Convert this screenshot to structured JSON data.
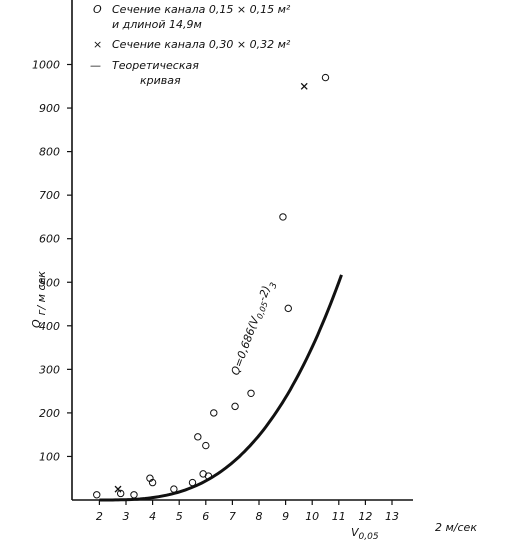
{
  "chart_data": {
    "type": "scatter",
    "title": "",
    "xlabel": "V",
    "xlabel_sub": "0,05",
    "xlabel_unit": "2 м/сек",
    "ylabel": "Q",
    "ylabel_sub": "г/ м сек",
    "xlim": [
      1,
      14
    ],
    "ylim": [
      0,
      1080
    ],
    "x_ticks": [
      2,
      3,
      4,
      5,
      6,
      7,
      8,
      9,
      10,
      11,
      12,
      13
    ],
    "y_ticks": [
      100,
      200,
      300,
      400,
      500,
      600,
      700,
      800,
      900,
      1000
    ],
    "x_tick_labels": [
      "2",
      "3",
      "4",
      "5",
      "6",
      "7",
      "8",
      "9",
      "10",
      "11",
      "12",
      "13"
    ],
    "y_tick_labels": [
      "100",
      "200",
      "300",
      "400",
      "500",
      "600",
      "700",
      "800",
      "900",
      "1000"
    ],
    "grid": false,
    "legend_position": "top-left",
    "series": [
      {
        "name": "Сечение канала 0,15 × 0,15 м² и длиной 14,9м",
        "legend_line1": "Сечение канала 0,15 × 0,15 м²",
        "legend_line2": "и длиной  14,9м",
        "marker": "circle",
        "marker_symbol": "O",
        "points": [
          [
            1.9,
            12
          ],
          [
            2.8,
            15
          ],
          [
            3.3,
            12
          ],
          [
            3.9,
            50
          ],
          [
            4.0,
            40
          ],
          [
            4.8,
            25
          ],
          [
            5.5,
            40
          ],
          [
            5.7,
            145
          ],
          [
            5.9,
            60
          ],
          [
            6.0,
            125
          ],
          [
            6.1,
            55
          ],
          [
            6.3,
            200
          ],
          [
            7.1,
            215
          ],
          [
            7.7,
            245
          ],
          [
            8.9,
            650
          ],
          [
            9.1,
            440
          ],
          [
            10.5,
            970
          ]
        ]
      },
      {
        "name": "Сечение канала 0,30 × 0,32 м²",
        "marker": "cross",
        "marker_symbol": "×",
        "points": [
          [
            2.7,
            25
          ],
          [
            9.7,
            950
          ]
        ]
      },
      {
        "name": "Теоретическая кривая",
        "legend_line1": "Теоретическая",
        "legend_line2": "кривая",
        "marker": "line",
        "marker_symbol": "—",
        "x_range": [
          2.0,
          11.1
        ],
        "formula": {
          "a": 0.686,
          "b": 2,
          "n": 3
        }
      }
    ],
    "annotations": [
      {
        "text": "Q=0,686(V",
        "sub": "0,05",
        "text2": "-2)",
        "sup": "3"
      }
    ]
  }
}
